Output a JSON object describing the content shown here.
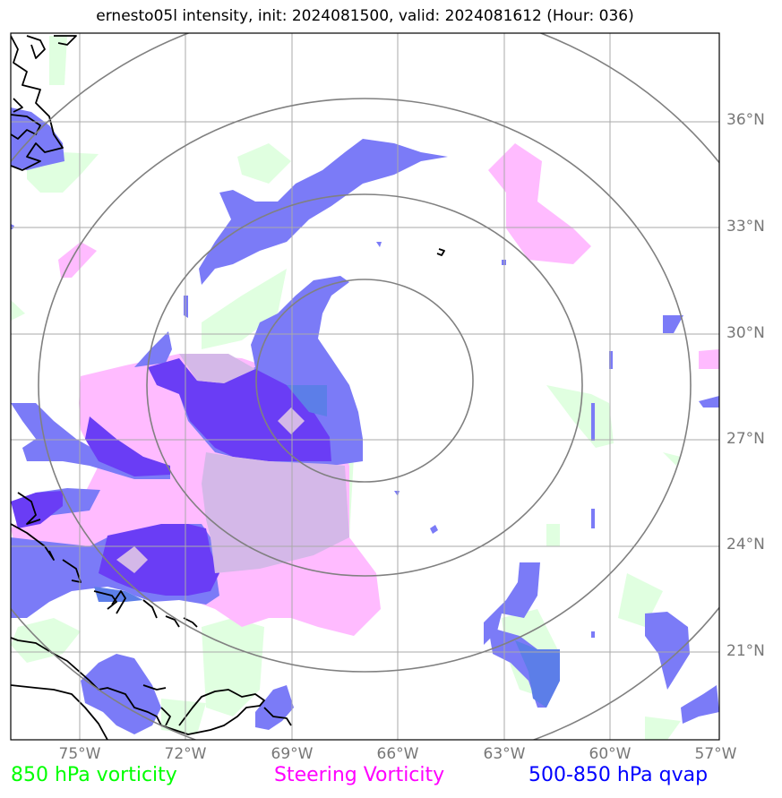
{
  "title": "ernesto05l intensity, init: 2024081500, valid: 2024081612 (Hour: 036)",
  "map": {
    "lat_labels": [
      "36°N",
      "33°N",
      "30°N",
      "27°N",
      "24°N",
      "21°N"
    ],
    "lon_labels": [
      "75°W",
      "72°W",
      "69°W",
      "66°W",
      "63°W",
      "60°W",
      "57°W"
    ],
    "range_rings": 4
  },
  "legend": [
    {
      "label": "850 hPa vorticity",
      "color": "#00ff00"
    },
    {
      "label": "Steering Vorticity",
      "color": "#ff00ff"
    },
    {
      "label": "500-850 hPa qvap",
      "color": "#0000ff"
    }
  ],
  "colors": {
    "vorticity_fill": "#e0ffe0",
    "steering_fill": "#ffbbff",
    "qvap_fill": "#7b7bf7",
    "overlap_fill": "#6a3df5",
    "grid": "#aaaaaa",
    "rings": "#808080",
    "coast": "#000000"
  }
}
